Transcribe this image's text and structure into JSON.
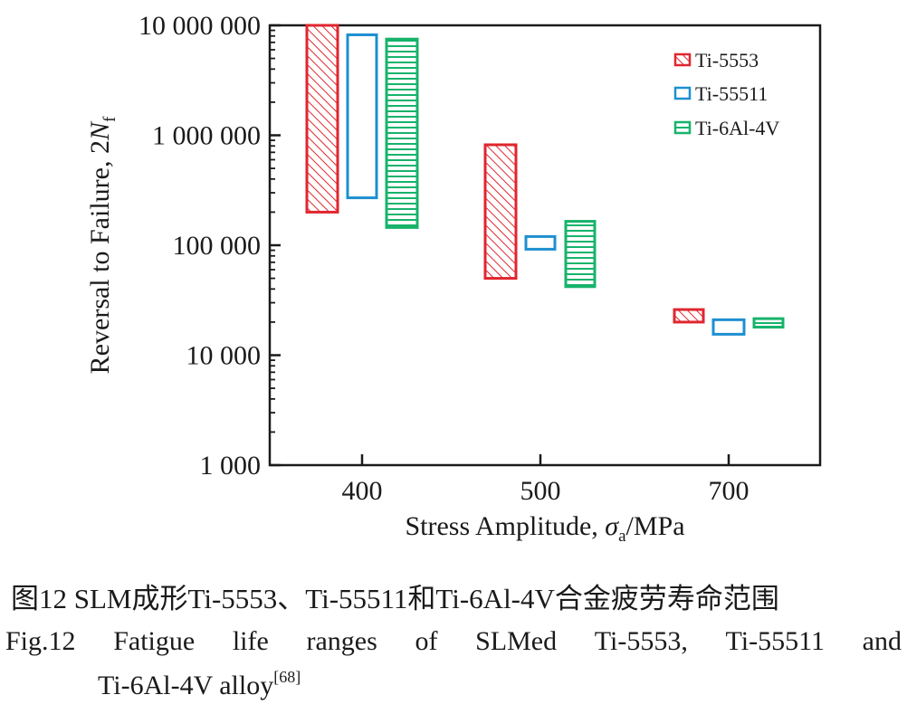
{
  "chart_data": {
    "type": "floating-bar",
    "xlabel_main": "Stress Amplitude, ",
    "xlabel_sym": "σ",
    "xlabel_sub": "a",
    "xlabel_unit": "/MPa",
    "ylabel_main": "Reversal to Failure, 2",
    "ylabel_sym": "N",
    "ylabel_sub": "f",
    "y_scale": "log",
    "ylim": [
      1000,
      10000000
    ],
    "y_ticks": [
      1000,
      10000,
      100000,
      1000000,
      10000000
    ],
    "y_tick_labels": [
      "1 000",
      "10 000",
      "100 000",
      "1 000 000",
      "10 000 000"
    ],
    "categories": [
      "400",
      "500",
      "700"
    ],
    "legend_position": "top-right",
    "series": [
      {
        "name": "Ti-5553",
        "color": "#e0262f",
        "pattern": "diagonal-hatch",
        "ranges": [
          [
            200000,
            10000000
          ],
          [
            50000,
            820000
          ],
          [
            20000,
            26000
          ]
        ]
      },
      {
        "name": "Ti-55511",
        "color": "#1e8fd0",
        "pattern": "empty",
        "ranges": [
          [
            270000,
            8200000
          ],
          [
            92000,
            120000
          ],
          [
            15500,
            21000
          ]
        ]
      },
      {
        "name": "Ti-6Al-4V",
        "color": "#17b36b",
        "pattern": "horizontal-lines",
        "ranges": [
          [
            145000,
            7500000
          ],
          [
            42000,
            165000
          ],
          [
            18000,
            21500
          ]
        ]
      }
    ]
  },
  "caption": {
    "cn": "图12 SLM成形Ti-5553、Ti-55511和Ti-6Al-4V合金疲劳寿命范围",
    "en_words": [
      "Fig.12",
      "Fatigue",
      "life",
      "ranges",
      "of",
      "SLMed",
      "Ti-5553,",
      "Ti-55511",
      "and"
    ],
    "en_line2": "Ti-6Al-4V alloy",
    "en_ref": "[68]"
  }
}
